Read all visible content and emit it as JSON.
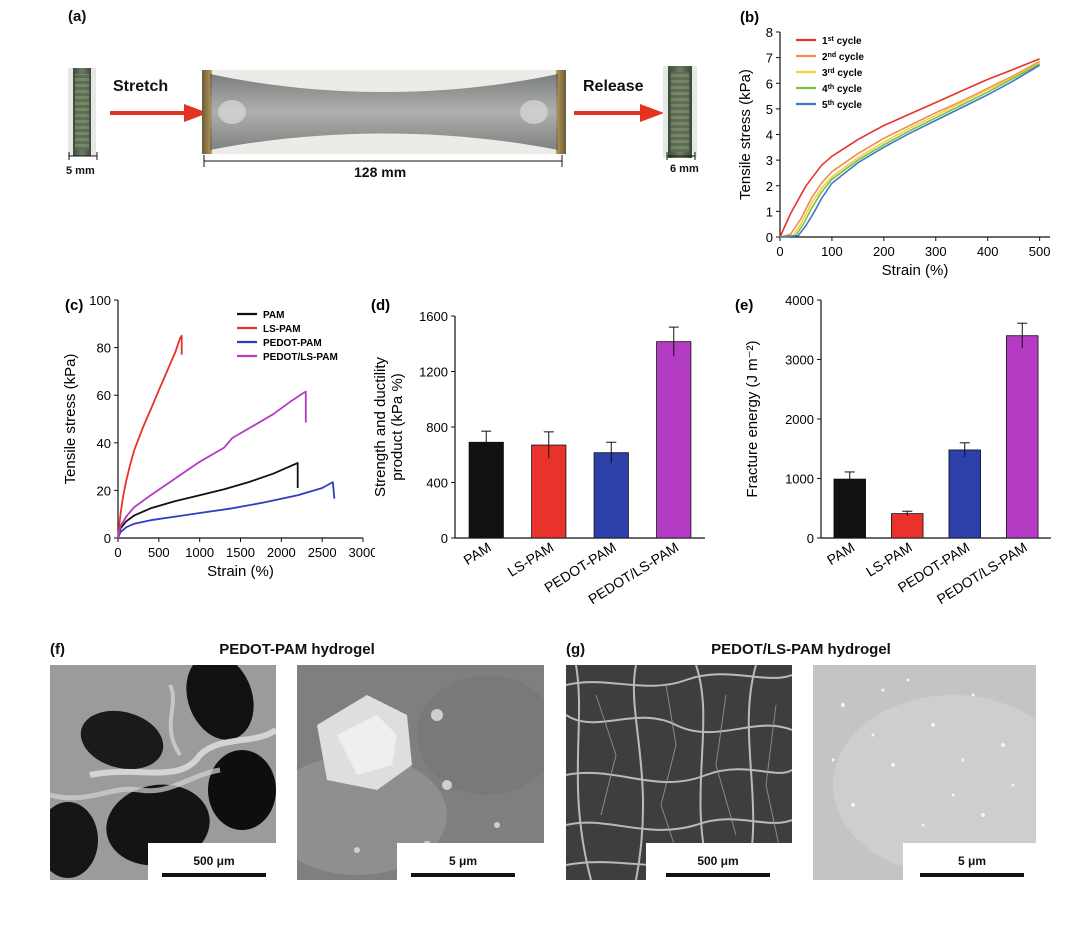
{
  "panel_a": {
    "label": "(a)",
    "stretch_label": "Stretch",
    "release_label": "Release",
    "initial_width": "5 mm",
    "stretched_length": "128 mm",
    "final_width": "6 mm"
  },
  "panel_f": {
    "label": "(f)",
    "title": "PEDOT-PAM hydrogel",
    "scale_left": "500 μm",
    "scale_right": "5 μm"
  },
  "panel_g": {
    "label": "(g)",
    "title": "PEDOT/LS-PAM hydrogel",
    "scale_left": "500 μm",
    "scale_right": "5 μm"
  },
  "chart_data": [
    {
      "panel": "(b)",
      "type": "line",
      "xlabel": "Strain (%)",
      "ylabel": "Tensile stress (kPa)",
      "xlim": [
        0,
        520
      ],
      "ylim": [
        0,
        8
      ],
      "xticks": [
        0,
        100,
        200,
        300,
        400,
        500
      ],
      "yticks": [
        0,
        1,
        2,
        3,
        4,
        5,
        6,
        7,
        8
      ],
      "legend_position": "top-left",
      "series": [
        {
          "name": "1st cycle",
          "sup": "st",
          "base": "1",
          "color": "#e8322b",
          "x": [
            0,
            20,
            50,
            80,
            100,
            150,
            200,
            250,
            300,
            350,
            400,
            450,
            500
          ],
          "y": [
            0,
            0.9,
            2.0,
            2.8,
            3.15,
            3.8,
            4.35,
            4.8,
            5.25,
            5.7,
            6.15,
            6.55,
            6.95
          ]
        },
        {
          "name": "2nd cycle",
          "sup": "nd",
          "base": "2",
          "color": "#f28a52",
          "x": [
            0,
            20,
            40,
            60,
            80,
            100,
            150,
            200,
            250,
            300,
            350,
            400,
            450,
            500
          ],
          "y": [
            0,
            0.1,
            0.7,
            1.5,
            2.1,
            2.55,
            3.25,
            3.85,
            4.35,
            4.85,
            5.3,
            5.8,
            6.3,
            6.85
          ]
        },
        {
          "name": "3rd cycle",
          "sup": "rd",
          "base": "3",
          "color": "#f2d23d",
          "x": [
            0,
            25,
            40,
            60,
            80,
            100,
            150,
            200,
            250,
            300,
            350,
            400,
            450,
            500
          ],
          "y": [
            0,
            0.05,
            0.5,
            1.3,
            1.9,
            2.35,
            3.1,
            3.7,
            4.25,
            4.75,
            5.25,
            5.75,
            6.25,
            6.8
          ]
        },
        {
          "name": "4th cycle",
          "sup": "th",
          "base": "4",
          "color": "#7ac143",
          "x": [
            0,
            30,
            45,
            60,
            80,
            100,
            150,
            200,
            250,
            300,
            350,
            400,
            450,
            500
          ],
          "y": [
            0,
            0.05,
            0.5,
            1.1,
            1.75,
            2.25,
            3.0,
            3.6,
            4.15,
            4.65,
            5.15,
            5.65,
            6.2,
            6.75
          ]
        },
        {
          "name": "5th cycle",
          "sup": "th",
          "base": "5",
          "color": "#3c78c8",
          "x": [
            0,
            35,
            50,
            65,
            80,
            100,
            150,
            200,
            250,
            300,
            350,
            400,
            450,
            500
          ],
          "y": [
            0,
            0.05,
            0.45,
            0.95,
            1.5,
            2.1,
            2.9,
            3.5,
            4.05,
            4.55,
            5.05,
            5.55,
            6.1,
            6.7
          ]
        }
      ]
    },
    {
      "panel": "(c)",
      "type": "line",
      "xlabel": "Strain (%)",
      "ylabel": "Tensile stress (kPa)",
      "xlim": [
        0,
        3000
      ],
      "ylim": [
        0,
        100
      ],
      "xticks": [
        0,
        500,
        1000,
        1500,
        2000,
        2500,
        3000
      ],
      "yticks": [
        0,
        20,
        40,
        60,
        80,
        100
      ],
      "legend_position": "top-right",
      "series": [
        {
          "name": "PAM",
          "color": "#111111",
          "x": [
            0,
            30,
            100,
            200,
            400,
            700,
            1000,
            1300,
            1600,
            1900,
            2100,
            2200,
            2200
          ],
          "y": [
            0,
            4,
            7,
            9.5,
            12.5,
            15.5,
            18,
            20.5,
            23.5,
            27,
            30,
            31.5,
            21
          ]
        },
        {
          "name": "LS-PAM",
          "color": "#e8322b",
          "x": [
            0,
            30,
            60,
            100,
            150,
            200,
            300,
            400,
            500,
            600,
            700,
            760,
            780,
            780
          ],
          "y": [
            0,
            10,
            17,
            24,
            31,
            37,
            46,
            54,
            62,
            70,
            78,
            84,
            85,
            77
          ]
        },
        {
          "name": "PEDOT-PAM",
          "color": "#2d3fc0",
          "x": [
            0,
            30,
            100,
            200,
            400,
            700,
            1000,
            1400,
            1800,
            2200,
            2500,
            2630,
            2650
          ],
          "y": [
            0,
            2.5,
            4.5,
            6,
            7.5,
            9,
            10.5,
            12.5,
            15,
            18,
            21,
            23.5,
            16.5
          ]
        },
        {
          "name": "PEDOT/LS-PAM",
          "color": "#b43bc4",
          "x": [
            0,
            30,
            100,
            200,
            400,
            700,
            1000,
            1300,
            1400,
            1600,
            1900,
            2100,
            2250,
            2300,
            2300
          ],
          "y": [
            0,
            5,
            9,
            13,
            18,
            25,
            32,
            38,
            42,
            46,
            52,
            57,
            60.5,
            61.5,
            48.5
          ]
        }
      ]
    },
    {
      "panel": "(d)",
      "type": "bar",
      "ylabel": "Strength and ductility product (kPa %)",
      "ylabel_lines": [
        "Strength and ductility",
        "product (kPa %)"
      ],
      "ylim": [
        0,
        1600
      ],
      "yticks": [
        0,
        400,
        800,
        1200,
        1600
      ],
      "categories": [
        "PAM",
        "LS-PAM",
        "PEDOT-PAM",
        "PEDOT/LS-PAM"
      ],
      "values": [
        690,
        670,
        615,
        1415
      ],
      "errors": [
        80,
        95,
        75,
        105
      ],
      "colors": [
        "#111111",
        "#e8322b",
        "#2d3fa8",
        "#b43bc4"
      ]
    },
    {
      "panel": "(e)",
      "type": "bar",
      "ylabel": "Fracture energy (J m⁻²)",
      "ylim": [
        0,
        4000
      ],
      "yticks": [
        0,
        1000,
        2000,
        3000,
        4000
      ],
      "categories": [
        "PAM",
        "LS-PAM",
        "PEDOT-PAM",
        "PEDOT/LS-PAM"
      ],
      "values": [
        990,
        410,
        1480,
        3400
      ],
      "errors": [
        120,
        40,
        120,
        210
      ],
      "colors": [
        "#111111",
        "#e8322b",
        "#2d3fa8",
        "#b43bc4"
      ]
    }
  ]
}
